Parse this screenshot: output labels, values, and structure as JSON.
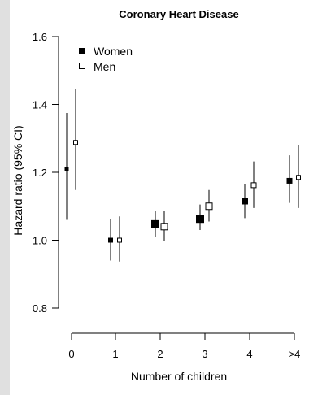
{
  "chart_data": {
    "type": "scatter",
    "title": "Coronary Heart Disease",
    "xlabel": "Number of children",
    "ylabel": "Hazard ratio (95% CI)",
    "categories": [
      "0",
      "1",
      "2",
      "3",
      "4",
      ">4"
    ],
    "ylim": [
      0.8,
      1.6
    ],
    "yticks": [
      "0.8",
      "1.0",
      "1.2",
      "1.4",
      "1.6"
    ],
    "grid": false,
    "legend_position": "top-left",
    "series": [
      {
        "name": "Women",
        "marker": "filled-square",
        "color": "#000000",
        "values": [
          1.21,
          1.0,
          1.047,
          1.063,
          1.115,
          1.175
        ],
        "ci_lower": [
          1.06,
          0.94,
          1.01,
          1.03,
          1.065,
          1.11
        ],
        "ci_upper": [
          1.375,
          1.063,
          1.085,
          1.105,
          1.165,
          1.25
        ]
      },
      {
        "name": "Men",
        "marker": "open-square",
        "color": "#000000",
        "values": [
          1.288,
          1.0,
          1.04,
          1.1,
          1.162,
          1.185
        ],
        "ci_lower": [
          1.148,
          0.937,
          0.997,
          1.055,
          1.095,
          1.095
        ],
        "ci_upper": [
          1.445,
          1.07,
          1.085,
          1.148,
          1.232,
          1.28
        ]
      }
    ]
  }
}
